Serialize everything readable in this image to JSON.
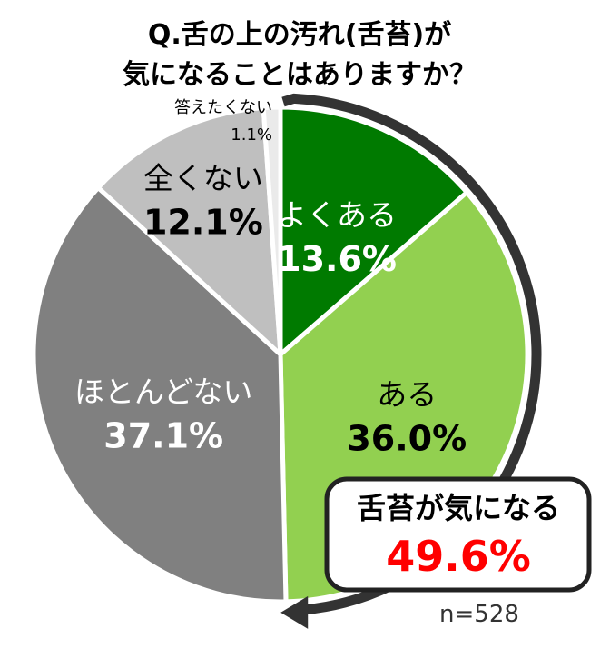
{
  "chart_data": {
    "type": "pie",
    "title": [
      "Q.舌の上の汚れ(舌苔)が",
      "気になることはありますか？"
    ],
    "categories": [
      "よくある",
      "ある",
      "ほとんどない",
      "全くない",
      "答えたくない"
    ],
    "values": [
      13.6,
      36.0,
      37.1,
      12.1,
      1.1
    ],
    "value_labels": [
      "13.6%",
      "36.0%",
      "37.1%",
      "12.1%",
      "1.1%"
    ],
    "colors": [
      "#007A00",
      "#92D050",
      "#808080",
      "#BFBFBF",
      "#EAEAEA"
    ],
    "label_colors": [
      "#ffffff",
      "#000000",
      "#ffffff",
      "#000000",
      "#000000"
    ],
    "callout": {
      "label": "舌苔が気になる",
      "value": "49.6%",
      "value_color": "#FF0000"
    },
    "sample_size": "n=528"
  }
}
